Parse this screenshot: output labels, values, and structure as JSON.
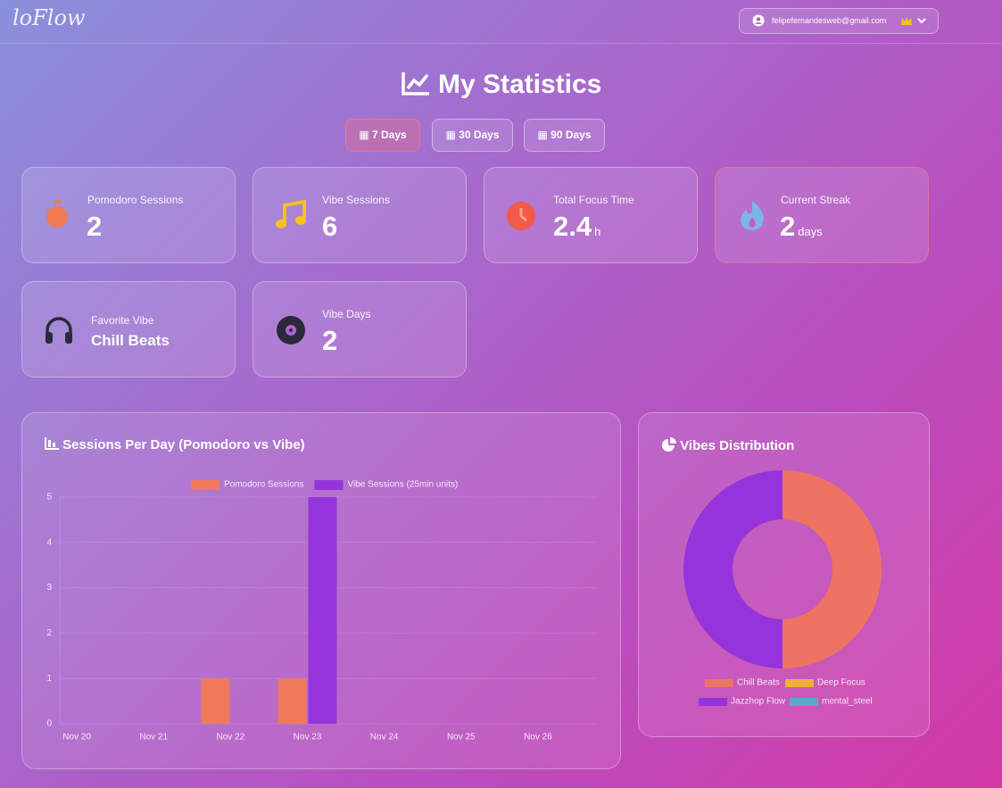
{
  "header": {
    "logo": "loFlow",
    "email": "felipefernandesweb@gmail.com"
  },
  "page_title": "My Statistics",
  "ranges": [
    "7 Days",
    "30 Days",
    "90 Days"
  ],
  "stats": [
    {
      "label": "Pomodoro Sessions",
      "value": 2
    },
    {
      "label": "Vibe Sessions",
      "value": 6
    },
    {
      "label": "Total Focus Time",
      "value": 2.4,
      "unit": "h"
    },
    {
      "label": "Current Streak",
      "value": 2,
      "unit": "days"
    },
    {
      "label": "Favorite Vibe",
      "value": "Chill Beats"
    },
    {
      "label": "Vibe Days",
      "value": 2
    }
  ],
  "chart_data": [
    {
      "type": "bar",
      "title": "Sessions Per Day (Pomodoro vs Vibe)",
      "categories": [
        "Nov 20",
        "Nov 21",
        "Nov 22",
        "Nov 23",
        "Nov 24",
        "Nov 25",
        "Nov 26"
      ],
      "series": [
        {
          "name": "Pomodoro Sessions",
          "color": "#ef7a5c",
          "values": [
            0,
            0,
            1,
            1,
            0,
            0,
            0
          ]
        },
        {
          "name": "Vibe Sessions (25min units)",
          "color": "#9634dc",
          "values": [
            0,
            0,
            0,
            5,
            0,
            0,
            0
          ]
        }
      ],
      "ylim": [
        0,
        5
      ],
      "yticks": [
        0,
        1,
        2,
        3,
        4,
        5
      ],
      "grid": true,
      "legend": "top"
    },
    {
      "type": "doughnut",
      "title": "Vibes Distribution",
      "categories": [
        "Chill Beats",
        "Deep Focus",
        "Jazzhop Flow",
        "mental_steel"
      ],
      "values": [
        50,
        0,
        50,
        0
      ],
      "colors": [
        "#ee7362",
        "#f0b03a",
        "#9634dc",
        "#5ea9c9"
      ],
      "legend": "bottom"
    }
  ]
}
